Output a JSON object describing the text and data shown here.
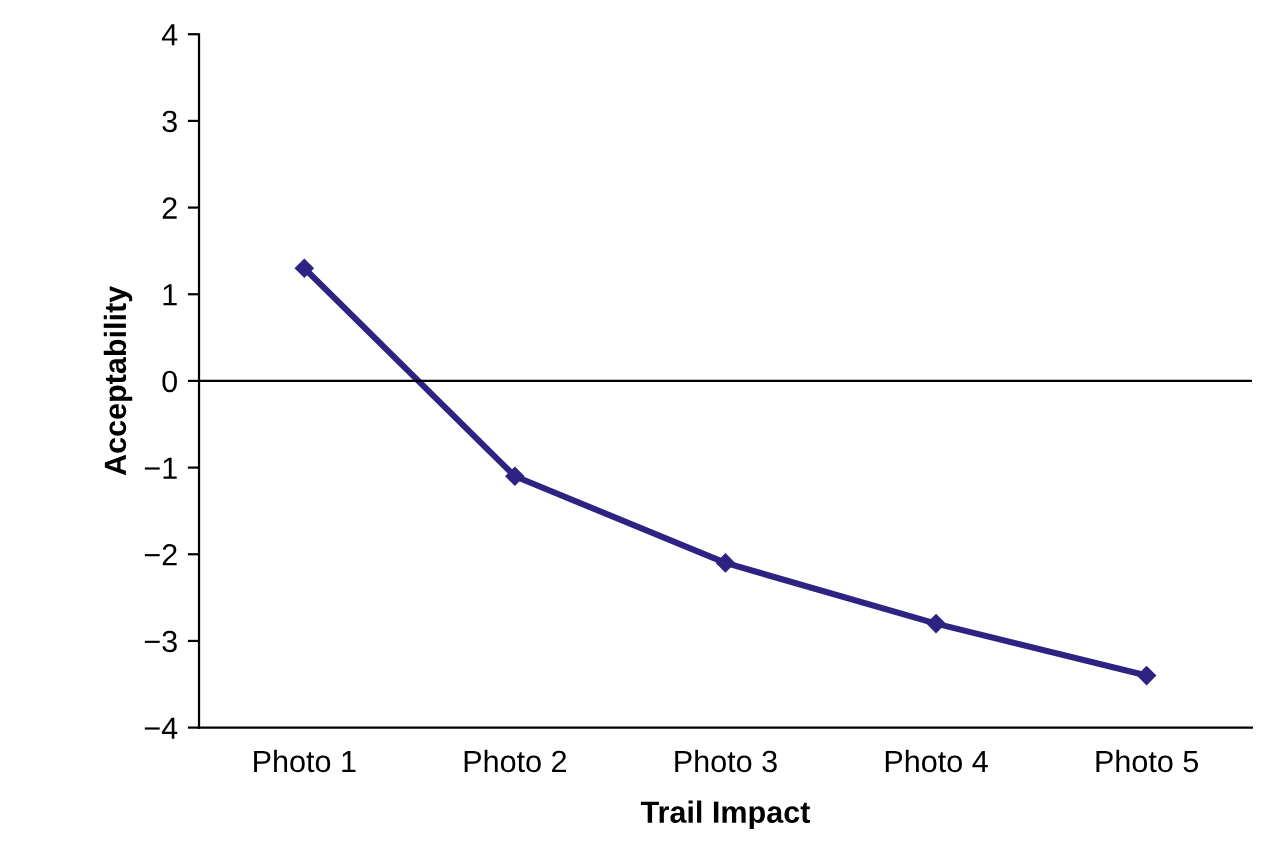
{
  "chart_data": {
    "type": "line",
    "xlabel": "Trail Impact",
    "ylabel": "Acceptability",
    "categories": [
      "Photo 1",
      "Photo 2",
      "Photo 3",
      "Photo 4",
      "Photo 5"
    ],
    "series": [
      {
        "color": "#2e2383",
        "values": [
          1.3,
          -1.1,
          -2.1,
          -2.8,
          -3.4
        ]
      }
    ],
    "ylim": [
      -4,
      4
    ],
    "yticks": [
      {
        "value": -4,
        "label": "−4"
      },
      {
        "value": -3,
        "label": "−3"
      },
      {
        "value": -2,
        "label": "−2"
      },
      {
        "value": -1,
        "label": "−1"
      },
      0,
      1,
      2,
      3,
      4
    ],
    "ref_lines": [
      {
        "axis": "y",
        "value": 0,
        "color": "#000000"
      }
    ],
    "marker": "diamond",
    "line_style": "solid",
    "grid": false
  }
}
